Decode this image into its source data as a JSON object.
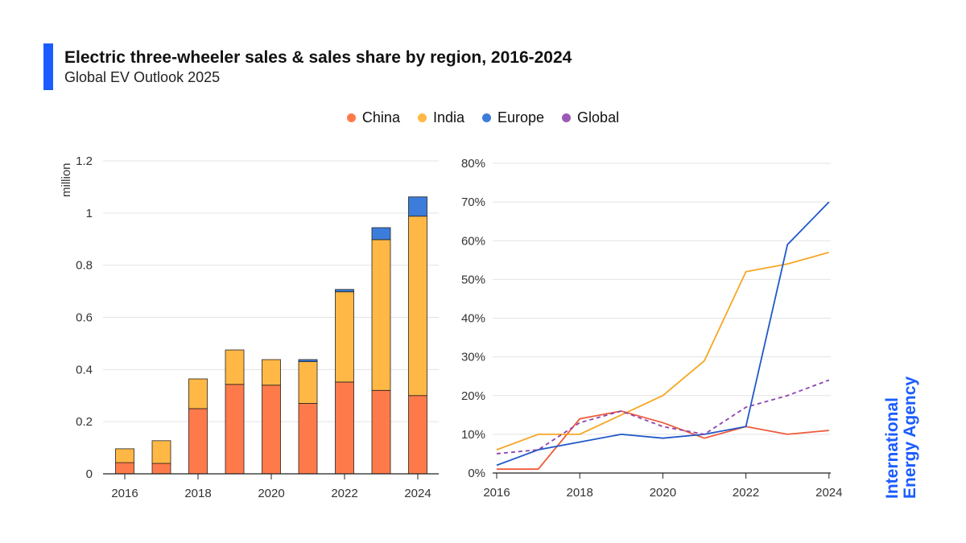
{
  "header": {
    "title": "Electric three-wheeler sales & sales share by region, 2016-2024",
    "subtitle": "Global EV Outlook 2025"
  },
  "legend": [
    {
      "label": "China",
      "color": "#ff7a4a"
    },
    {
      "label": "India",
      "color": "#ffb845"
    },
    {
      "label": "Europe",
      "color": "#3c7ddb"
    },
    {
      "label": "Global",
      "color": "#9b59b6"
    }
  ],
  "logo": {
    "line1": "International",
    "line2": "Energy Agency"
  },
  "chart_data": [
    {
      "type": "bar",
      "stacked": true,
      "categories": [
        "2016",
        "2017",
        "2018",
        "2019",
        "2020",
        "2021",
        "2022",
        "2023",
        "2024"
      ],
      "xticks": [
        "2016",
        "2018",
        "2020",
        "2022",
        "2024"
      ],
      "ylabel": "million",
      "ylim": [
        0,
        1.2
      ],
      "yticks": [
        0,
        0.2,
        0.4,
        0.6,
        0.8,
        1,
        1.2
      ],
      "ytick_labels": [
        "0",
        "0.2",
        "0.4",
        "0.6",
        "0.8",
        "1",
        "1.2"
      ],
      "series": [
        {
          "name": "China",
          "color": "#ff7a4a",
          "values": [
            0.043,
            0.04,
            0.25,
            0.343,
            0.34,
            0.27,
            0.352,
            0.32,
            0.3
          ]
        },
        {
          "name": "India",
          "color": "#ffb845",
          "values": [
            0.053,
            0.087,
            0.114,
            0.132,
            0.098,
            0.16,
            0.346,
            0.578,
            0.688
          ]
        },
        {
          "name": "Europe",
          "color": "#3c7ddb",
          "values": [
            0,
            0,
            0,
            0,
            0,
            0.008,
            0.009,
            0.046,
            0.074
          ]
        }
      ]
    },
    {
      "type": "line",
      "categories": [
        "2016",
        "2017",
        "2018",
        "2019",
        "2020",
        "2021",
        "2022",
        "2023",
        "2024"
      ],
      "xticks": [
        "2016",
        "2018",
        "2020",
        "2022",
        "2024"
      ],
      "ylim": [
        0,
        80
      ],
      "yticks": [
        0,
        10,
        20,
        30,
        40,
        50,
        60,
        70,
        80
      ],
      "ytick_labels": [
        "0%",
        "10%",
        "20%",
        "30%",
        "40%",
        "50%",
        "60%",
        "70%",
        "80%"
      ],
      "series": [
        {
          "name": "China",
          "color": "#f05a3a",
          "dashed": false,
          "values": [
            1,
            1,
            14,
            16,
            13,
            9,
            12,
            10,
            11
          ]
        },
        {
          "name": "India",
          "color": "#f5a623",
          "dashed": false,
          "values": [
            6,
            10,
            10,
            15,
            20,
            29,
            52,
            54,
            57
          ]
        },
        {
          "name": "Europe",
          "color": "#2058c8",
          "dashed": false,
          "values": [
            2,
            6,
            8,
            10,
            9,
            10,
            12,
            59,
            70
          ]
        },
        {
          "name": "Global",
          "color": "#8e44ad",
          "dashed": true,
          "values": [
            5,
            6,
            13,
            16,
            12,
            10,
            17,
            20,
            24
          ]
        }
      ]
    }
  ]
}
